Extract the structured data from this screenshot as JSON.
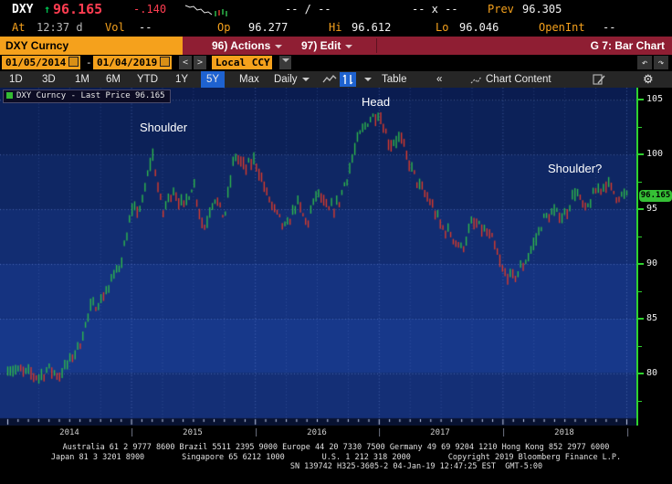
{
  "colors": {
    "amber": "#f5a11c",
    "bbg-red": "#8f1e33",
    "up-green": "#00c050",
    "price-red": "#ff3d51",
    "sel-blue": "#1e62d0",
    "axis-green": "#2fd12f",
    "chip-green": "#35c035"
  },
  "header": {
    "ticker": "DXY",
    "arrow": "↑",
    "last_price": "96.165",
    "change": "-.140",
    "bid_ask": "-- / --",
    "size": "-- x --",
    "prev_label": "Prev",
    "prev_value": "96.305",
    "at_label": "At",
    "at_time": "12:37 d",
    "vol_label": "Vol",
    "vol_value": "--",
    "op_label": "Op",
    "op_value": "96.277",
    "hi_label": "Hi",
    "hi_value": "96.612",
    "lo_label": "Lo",
    "lo_value": "96.046",
    "openint_label": "OpenInt",
    "openint_value": "--"
  },
  "command_bar": {
    "security": "DXY Curncy",
    "actions_label": "96) Actions",
    "edit_label": "97) Edit",
    "function_title": "G 7: Bar Chart"
  },
  "settings_bar": {
    "date_from": "01/05/2014",
    "range_separator": "-",
    "date_to": "01/04/2019",
    "prev_arrow": "<",
    "next_arrow": ">",
    "currency": "Local CCY"
  },
  "icons": {
    "undo": "↶",
    "redo": "↷",
    "gear": "⚙"
  },
  "toolbar": {
    "ranges": [
      "1D",
      "3D",
      "1M",
      "6M",
      "YTD",
      "1Y",
      "5Y",
      "Max"
    ],
    "selected_range": "5Y",
    "period": "Daily",
    "table_label": "Table",
    "collapse_label": "«",
    "chart_content_label": "Chart Content"
  },
  "legend": {
    "label": "DXY Curncy - Last Price 96.165"
  },
  "axis": {
    "yticks": [
      "105",
      "100",
      "95",
      "90",
      "85",
      "80"
    ],
    "price_label": "96.165",
    "xticks": [
      "2014",
      "2015",
      "2016",
      "2017",
      "2018"
    ],
    "separator": "|"
  },
  "chart_data": {
    "type": "bar",
    "title": "DXY Curncy - Last Price 96.165",
    "xlabel": "",
    "ylabel": "",
    "x_range": [
      "2014-01-05",
      "2019-01-04"
    ],
    "ylim": [
      75.9,
      106.1
    ],
    "yticks": [
      105,
      100,
      95,
      90,
      85,
      80
    ],
    "x_years": [
      "2014",
      "2015",
      "2016",
      "2017",
      "2018"
    ],
    "last_price": 96.165,
    "series": [
      {
        "name": "DXY Curncy - Last Price",
        "frequency": "monthly, Jan-2014 to Jan-2019",
        "values": [
          80.5,
          80.2,
          80.0,
          79.7,
          80.4,
          79.8,
          81.1,
          82.7,
          85.9,
          86.6,
          88.3,
          90.3,
          94.6,
          95.3,
          100.2,
          94.6,
          96.9,
          95.1,
          97.4,
          93.1,
          96.2,
          94.2,
          100.0,
          98.7,
          99.5,
          96.6,
          94.6,
          93.1,
          95.7,
          93.6,
          96.6,
          94.8,
          95.4,
          98.3,
          101.5,
          103.2,
          103.8,
          100.9,
          101.6,
          99.0,
          96.9,
          95.6,
          93.4,
          92.7,
          91.3,
          93.7,
          93.2,
          92.1,
          89.2,
          88.7,
          89.9,
          91.8,
          94.2,
          94.6,
          94.4,
          96.7,
          94.8,
          96.6,
          97.4,
          96.3,
          96.165
        ]
      }
    ],
    "annotations": [
      {
        "text": "Shoulder",
        "x": "2015-03",
        "y": 100.4
      },
      {
        "text": "Head",
        "x": "2017-01",
        "y": 103.8
      },
      {
        "text": "Shoulder?",
        "x": "2018-11",
        "y": 97.5
      }
    ],
    "up_color": "#2eb84b",
    "down_color": "#d93a2b",
    "grid_color": "rgba(130,160,235,0.5)",
    "band_edges": [
      106.1,
      105,
      100,
      95,
      90,
      85,
      80,
      75.9
    ],
    "plot_bands": [
      "#0a1c50",
      "#0c2158",
      "#0f2764",
      "#122d72",
      "#153380",
      "#17388a",
      "#142f76"
    ],
    "tick_strip_color": "#081231"
  },
  "footer": {
    "lines": [
      "Australia 61 2 9777 8600 Brazil 5511 2395 9000 Europe 44 20 7330 7500 Germany 49 69 9204 1210 Hong Kong 852 2977 6000",
      "Japan 81 3 3201 8900        Singapore 65 6212 1000        U.S. 1 212 318 2000        Copyright 2019 Bloomberg Finance L.P.",
      "SN 139742 H325-3605-2 04-Jan-19 12:47:25 EST  GMT-5:00"
    ]
  }
}
